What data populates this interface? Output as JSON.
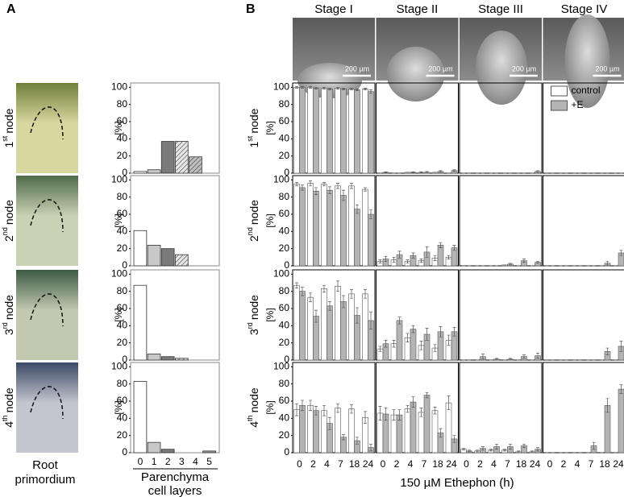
{
  "chart_data": {
    "type": "figure",
    "panel_a": {
      "label": "A",
      "type": "bar",
      "photo_caption_lines": [
        "Root",
        "primordium"
      ],
      "xlabel_lines": [
        "Parenchyma",
        "cell layers"
      ],
      "ylabel": "[%]",
      "categories": [
        "0",
        "1",
        "2",
        "3",
        "4",
        "5"
      ],
      "colors": [
        "#ffffff",
        "#c8c8c8",
        "#7a7a7a",
        "#e6e6e6",
        "#bdbdbd",
        "#9a9a9a"
      ],
      "hatched": [
        false,
        false,
        false,
        true,
        true,
        false
      ],
      "ylim": [
        0,
        105
      ],
      "yticks": [
        0,
        20,
        40,
        60,
        80,
        100
      ],
      "rows": [
        {
          "ordinal": "1",
          "suffix": "st",
          "word": "node",
          "values": [
            2,
            4,
            37,
            37,
            19,
            0
          ]
        },
        {
          "ordinal": "2",
          "suffix": "nd",
          "word": "node",
          "values": [
            41,
            24,
            20,
            13,
            0,
            0
          ]
        },
        {
          "ordinal": "3",
          "suffix": "rd",
          "word": "node",
          "values": [
            87,
            7,
            4,
            2,
            0,
            0
          ]
        },
        {
          "ordinal": "4",
          "suffix": "th",
          "word": "node",
          "values": [
            83,
            12,
            4,
            0,
            0,
            2
          ]
        }
      ]
    },
    "panel_b": {
      "label": "B",
      "type": "bar",
      "stages": [
        "Stage I",
        "Stage II",
        "Stage III",
        "Stage IV"
      ],
      "scale_bar": "200 µm",
      "xlabel": "150 µM Ethephon (h)",
      "ylabel": "[%]",
      "categories": [
        "0",
        "2",
        "4",
        "7",
        "18",
        "24"
      ],
      "series": [
        {
          "name": "control",
          "color": "#ffffff"
        },
        {
          "name": "+E",
          "color": "#b4b4b4"
        }
      ],
      "ylim": [
        0,
        105
      ],
      "yticks": [
        0,
        20,
        40,
        60,
        80,
        100
      ],
      "rows": [
        {
          "ordinal": "1",
          "suffix": "st",
          "word": "node",
          "cells": [
            {
              "values": [
                [
                  100,
                  100,
                  99,
                  99,
                  98,
                  98
                ],
                [
                  100,
                  99,
                  98,
                  98,
                  97,
                  95
                ]
              ],
              "errors": [
                [
                  1,
                  1,
                  1,
                  1,
                  1,
                  1
                ],
                [
                  1,
                  1,
                  1,
                  1,
                  1,
                  2
                ]
              ]
            },
            {
              "values": [
                [
                  0,
                  0,
                  1,
                  1,
                  1,
                  0
                ],
                [
                  1,
                  0,
                  1,
                  1,
                  2,
                  3
                ]
              ],
              "errors": [
                [
                  0,
                  0,
                  0,
                  0.5,
                  0,
                  0
                ],
                [
                  0.5,
                  0,
                  0.5,
                  1,
                  1,
                  1
                ]
              ]
            },
            {
              "values": [
                [
                  0,
                  0,
                  0,
                  0,
                  0,
                  0
                ],
                [
                  0,
                  0,
                  0,
                  0,
                  0,
                  2
                ]
              ],
              "errors": [
                [
                  0,
                  0,
                  0,
                  0,
                  0,
                  0
                ],
                [
                  0,
                  0,
                  0,
                  0,
                  0,
                  1
                ]
              ]
            },
            {
              "values": [
                [
                  0,
                  0,
                  0,
                  0,
                  0,
                  0
                ],
                [
                  0,
                  0,
                  0,
                  0,
                  0,
                  0
                ]
              ],
              "errors": [
                [
                  0,
                  0,
                  0,
                  0,
                  0,
                  0
                ],
                [
                  0,
                  0,
                  0,
                  0,
                  0,
                  0
                ]
              ]
            }
          ]
        },
        {
          "ordinal": "2",
          "suffix": "nd",
          "word": "node",
          "cells": [
            {
              "values": [
                [
                  95,
                  96,
                  95,
                  93,
                  93,
                  89
                ],
                [
                  91,
                  87,
                  88,
                  82,
                  66,
                  60
                ]
              ],
              "errors": [
                [
                  2,
                  3,
                  2,
                  3,
                  3,
                  2
                ],
                [
                  3,
                  4,
                  4,
                  6,
                  5,
                  5
                ]
              ]
            },
            {
              "values": [
                [
                  5,
                  7,
                  5,
                  6,
                  9,
                  10
                ],
                [
                  8,
                  13,
                  12,
                  16,
                  24,
                  21
                ]
              ],
              "errors": [
                [
                  2,
                  3,
                  2,
                  2,
                  3,
                  2
                ],
                [
                  3,
                  4,
                  3,
                  6,
                  3,
                  3
                ]
              ]
            },
            {
              "values": [
                [
                  0,
                  0,
                  0,
                  1,
                  0,
                  0
                ],
                [
                  0,
                  0,
                  0,
                  2,
                  6,
                  4
                ]
              ],
              "errors": [
                [
                  0,
                  0,
                  0,
                  0,
                  0,
                  0
                ],
                [
                  0,
                  0,
                  0,
                  1,
                  2,
                  1
                ]
              ]
            },
            {
              "values": [
                [
                  0,
                  0,
                  0,
                  0,
                  0,
                  0
                ],
                [
                  0,
                  0,
                  0,
                  0,
                  3,
                  15
                ]
              ],
              "errors": [
                [
                  0,
                  0,
                  0,
                  0,
                  0,
                  0
                ],
                [
                  0,
                  0,
                  0,
                  0,
                  2,
                  3
                ]
              ]
            }
          ]
        },
        {
          "ordinal": "3",
          "suffix": "rd",
          "word": "node",
          "cells": [
            {
              "values": [
                [
                  87,
                  73,
                  83,
                  86,
                  77,
                  77
                ],
                [
                  80,
                  51,
                  63,
                  68,
                  52,
                  46
                ]
              ],
              "errors": [
                [
                  3,
                  5,
                  4,
                  6,
                  5,
                  5
                ],
                [
                  5,
                  7,
                  5,
                  7,
                  9,
                  10
                ]
              ]
            },
            {
              "values": [
                [
                  13,
                  19,
                  26,
                  17,
                  14,
                  23
                ],
                [
                  19,
                  46,
                  36,
                  30,
                  33,
                  33
                ]
              ],
              "errors": [
                [
                  3,
                  4,
                  5,
                  5,
                  4,
                  6
                ],
                [
                  4,
                  4,
                  4,
                  7,
                  6,
                  5
                ]
              ]
            },
            {
              "values": [
                [
                  0,
                  0,
                  0,
                  0,
                  0,
                  0
                ],
                [
                  0,
                  4,
                  1,
                  1,
                  4,
                  5
                ]
              ],
              "errors": [
                [
                  0,
                  0,
                  0,
                  0,
                  0,
                  0
                ],
                [
                  0,
                  3,
                  1,
                  1,
                  2,
                  3
                ]
              ]
            },
            {
              "values": [
                [
                  0,
                  0,
                  0,
                  0,
                  0,
                  0
                ],
                [
                  0,
                  0,
                  0,
                  0,
                  10,
                  16
                ]
              ],
              "errors": [
                [
                  0,
                  0,
                  0,
                  0,
                  0,
                  0
                ],
                [
                  0,
                  0,
                  0,
                  0,
                  4,
                  6
                ]
              ]
            }
          ]
        },
        {
          "ordinal": "4",
          "suffix": "th",
          "word": "node",
          "cells": [
            {
              "values": [
                [
                  50,
                  55,
                  49,
                  52,
                  51,
                  41
                ],
                [
                  55,
                  49,
                  34,
                  18,
                  14,
                  6
                ]
              ],
              "errors": [
                [
                  7,
                  6,
                  6,
                  5,
                  5,
                  7
                ],
                [
                  6,
                  5,
                  7,
                  3,
                  4,
                  4
                ]
              ]
            },
            {
              "values": [
                [
                  46,
                  44,
                  51,
                  47,
                  49,
                  58
                ],
                [
                  45,
                  44,
                  59,
                  67,
                  23,
                  16
                ]
              ],
              "errors": [
                [
                  8,
                  6,
                  4,
                  5,
                  4,
                  8
                ],
                [
                  7,
                  6,
                  6,
                  3,
                  5,
                  4
                ]
              ]
            },
            {
              "values": [
                [
                  4,
                  2,
                  3,
                  3,
                  1,
                  1
                ],
                [
                  2,
                  5,
                  7,
                  7,
                  8,
                  4
                ]
              ],
              "errors": [
                [
                  1,
                  1,
                  1,
                  1,
                  1,
                  1
                ],
                [
                  1,
                  2,
                  3,
                  3,
                  2,
                  2
                ]
              ]
            },
            {
              "values": [
                [
                  0,
                  0,
                  0,
                  0,
                  0,
                  0
                ],
                [
                  0,
                  0,
                  0,
                  8,
                  55,
                  74
                ]
              ],
              "errors": [
                [
                  0,
                  0,
                  0,
                  0,
                  0,
                  0
                ],
                [
                  0,
                  0,
                  0,
                  4,
                  8,
                  5
                ]
              ]
            }
          ]
        }
      ]
    }
  }
}
